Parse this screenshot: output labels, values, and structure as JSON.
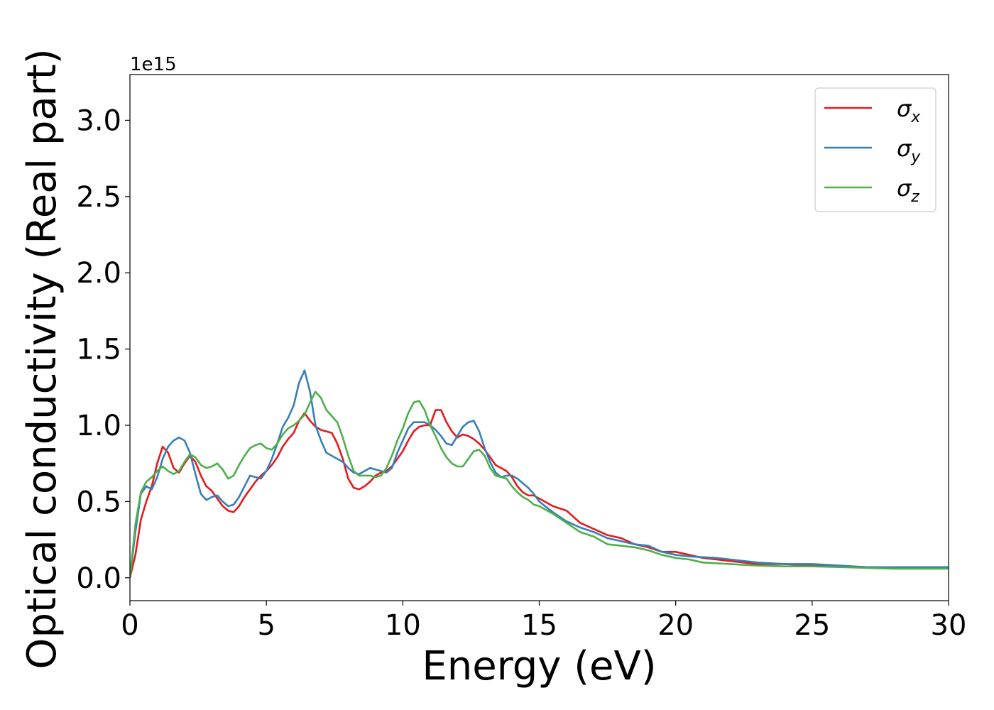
{
  "chart_data": {
    "type": "line",
    "title": "",
    "xlabel": "Energy (eV)",
    "ylabel": "Optical conductivity (Real part)",
    "y_offset_text": "1e15",
    "y_scale_factor": 1000000000000000.0,
    "xlim": [
      0,
      30
    ],
    "ylim": [
      -0.15,
      3.3
    ],
    "xticks": [
      0,
      5,
      10,
      15,
      20,
      25,
      30
    ],
    "xtick_labels": [
      "0",
      "5",
      "10",
      "15",
      "20",
      "25",
      "30"
    ],
    "yticks": [
      0.0,
      0.5,
      1.0,
      1.5,
      2.0,
      2.5,
      3.0
    ],
    "ytick_labels": [
      "0.0",
      "0.5",
      "1.0",
      "1.5",
      "2.0",
      "2.5",
      "3.0"
    ],
    "grid": false,
    "legend_position": "top-right",
    "series": [
      {
        "name": "σx",
        "symbol": "σ",
        "subscript": "x",
        "color": "#e41a1c",
        "points": [
          [
            0,
            0
          ],
          [
            0.2,
            0.15
          ],
          [
            0.4,
            0.38
          ],
          [
            0.6,
            0.5
          ],
          [
            0.8,
            0.6
          ],
          [
            1.0,
            0.75
          ],
          [
            1.2,
            0.86
          ],
          [
            1.4,
            0.82
          ],
          [
            1.6,
            0.72
          ],
          [
            1.8,
            0.69
          ],
          [
            2.0,
            0.75
          ],
          [
            2.2,
            0.8
          ],
          [
            2.4,
            0.76
          ],
          [
            2.6,
            0.67
          ],
          [
            2.8,
            0.6
          ],
          [
            3.0,
            0.57
          ],
          [
            3.2,
            0.52
          ],
          [
            3.4,
            0.47
          ],
          [
            3.6,
            0.44
          ],
          [
            3.8,
            0.43
          ],
          [
            4.0,
            0.47
          ],
          [
            4.2,
            0.53
          ],
          [
            4.4,
            0.58
          ],
          [
            4.6,
            0.63
          ],
          [
            4.8,
            0.67
          ],
          [
            5.0,
            0.7
          ],
          [
            5.2,
            0.74
          ],
          [
            5.4,
            0.79
          ],
          [
            5.6,
            0.86
          ],
          [
            5.8,
            0.91
          ],
          [
            6.0,
            0.95
          ],
          [
            6.2,
            1.03
          ],
          [
            6.4,
            1.08
          ],
          [
            6.6,
            1.03
          ],
          [
            6.8,
            0.99
          ],
          [
            7.0,
            0.97
          ],
          [
            7.2,
            0.96
          ],
          [
            7.4,
            0.95
          ],
          [
            7.6,
            0.88
          ],
          [
            7.8,
            0.78
          ],
          [
            8.0,
            0.65
          ],
          [
            8.2,
            0.59
          ],
          [
            8.4,
            0.58
          ],
          [
            8.6,
            0.6
          ],
          [
            8.8,
            0.63
          ],
          [
            9.0,
            0.67
          ],
          [
            9.2,
            0.69
          ],
          [
            9.4,
            0.7
          ],
          [
            9.6,
            0.73
          ],
          [
            9.8,
            0.78
          ],
          [
            10.0,
            0.83
          ],
          [
            10.2,
            0.9
          ],
          [
            10.4,
            0.96
          ],
          [
            10.6,
            0.99
          ],
          [
            10.8,
            1.0
          ],
          [
            11.0,
            1.0
          ],
          [
            11.2,
            1.1
          ],
          [
            11.4,
            1.1
          ],
          [
            11.6,
            1.02
          ],
          [
            11.8,
            0.96
          ],
          [
            12.0,
            0.92
          ],
          [
            12.2,
            0.94
          ],
          [
            12.4,
            0.93
          ],
          [
            12.6,
            0.91
          ],
          [
            12.8,
            0.88
          ],
          [
            13.0,
            0.84
          ],
          [
            13.2,
            0.79
          ],
          [
            13.4,
            0.74
          ],
          [
            13.6,
            0.72
          ],
          [
            13.8,
            0.7
          ],
          [
            14.0,
            0.66
          ],
          [
            14.2,
            0.6
          ],
          [
            14.4,
            0.56
          ],
          [
            14.6,
            0.54
          ],
          [
            14.8,
            0.54
          ],
          [
            15.0,
            0.52
          ],
          [
            15.5,
            0.47
          ],
          [
            16.0,
            0.44
          ],
          [
            16.5,
            0.36
          ],
          [
            17.0,
            0.32
          ],
          [
            17.5,
            0.28
          ],
          [
            18.0,
            0.26
          ],
          [
            18.5,
            0.22
          ],
          [
            19.0,
            0.2
          ],
          [
            19.5,
            0.17
          ],
          [
            20.0,
            0.17
          ],
          [
            20.5,
            0.15
          ],
          [
            21.0,
            0.13
          ],
          [
            21.5,
            0.12
          ],
          [
            22.0,
            0.11
          ],
          [
            22.5,
            0.1
          ],
          [
            23.0,
            0.09
          ],
          [
            24.0,
            0.09
          ],
          [
            25.0,
            0.08
          ],
          [
            26.0,
            0.075
          ],
          [
            27.0,
            0.07
          ],
          [
            28.0,
            0.065
          ],
          [
            29.0,
            0.065
          ],
          [
            30.0,
            0.065
          ]
        ]
      },
      {
        "name": "σy",
        "symbol": "σ",
        "subscript": "y",
        "color": "#377eb8",
        "points": [
          [
            0,
            0
          ],
          [
            0.2,
            0.3
          ],
          [
            0.4,
            0.55
          ],
          [
            0.6,
            0.6
          ],
          [
            0.8,
            0.58
          ],
          [
            1.0,
            0.66
          ],
          [
            1.2,
            0.78
          ],
          [
            1.4,
            0.86
          ],
          [
            1.6,
            0.9
          ],
          [
            1.8,
            0.92
          ],
          [
            2.0,
            0.9
          ],
          [
            2.2,
            0.82
          ],
          [
            2.4,
            0.68
          ],
          [
            2.6,
            0.55
          ],
          [
            2.8,
            0.51
          ],
          [
            3.0,
            0.53
          ],
          [
            3.2,
            0.54
          ],
          [
            3.4,
            0.5
          ],
          [
            3.6,
            0.47
          ],
          [
            3.8,
            0.48
          ],
          [
            4.0,
            0.53
          ],
          [
            4.2,
            0.6
          ],
          [
            4.4,
            0.67
          ],
          [
            4.6,
            0.66
          ],
          [
            4.8,
            0.65
          ],
          [
            5.0,
            0.7
          ],
          [
            5.2,
            0.78
          ],
          [
            5.4,
            0.88
          ],
          [
            5.6,
            0.99
          ],
          [
            5.8,
            1.05
          ],
          [
            6.0,
            1.13
          ],
          [
            6.2,
            1.28
          ],
          [
            6.4,
            1.36
          ],
          [
            6.6,
            1.22
          ],
          [
            6.8,
            1.0
          ],
          [
            7.0,
            0.9
          ],
          [
            7.2,
            0.82
          ],
          [
            7.4,
            0.8
          ],
          [
            7.6,
            0.78
          ],
          [
            7.8,
            0.76
          ],
          [
            8.0,
            0.72
          ],
          [
            8.2,
            0.69
          ],
          [
            8.4,
            0.68
          ],
          [
            8.6,
            0.7
          ],
          [
            8.8,
            0.72
          ],
          [
            9.0,
            0.71
          ],
          [
            9.2,
            0.7
          ],
          [
            9.4,
            0.69
          ],
          [
            9.6,
            0.72
          ],
          [
            9.8,
            0.82
          ],
          [
            10.0,
            0.9
          ],
          [
            10.2,
            0.98
          ],
          [
            10.4,
            1.02
          ],
          [
            10.6,
            1.02
          ],
          [
            10.8,
            1.02
          ],
          [
            11.0,
            1.0
          ],
          [
            11.2,
            0.97
          ],
          [
            11.4,
            0.93
          ],
          [
            11.6,
            0.88
          ],
          [
            11.8,
            0.87
          ],
          [
            12.0,
            0.93
          ],
          [
            12.2,
            0.99
          ],
          [
            12.4,
            1.02
          ],
          [
            12.6,
            1.03
          ],
          [
            12.8,
            0.96
          ],
          [
            13.0,
            0.85
          ],
          [
            13.2,
            0.76
          ],
          [
            13.4,
            0.69
          ],
          [
            13.6,
            0.66
          ],
          [
            13.8,
            0.67
          ],
          [
            14.0,
            0.67
          ],
          [
            14.2,
            0.65
          ],
          [
            14.4,
            0.62
          ],
          [
            14.6,
            0.59
          ],
          [
            14.8,
            0.55
          ],
          [
            15.0,
            0.5
          ],
          [
            15.5,
            0.43
          ],
          [
            16.0,
            0.37
          ],
          [
            16.5,
            0.33
          ],
          [
            17.0,
            0.3
          ],
          [
            17.5,
            0.26
          ],
          [
            18.0,
            0.24
          ],
          [
            18.5,
            0.22
          ],
          [
            19.0,
            0.21
          ],
          [
            19.5,
            0.17
          ],
          [
            20.0,
            0.15
          ],
          [
            20.5,
            0.14
          ],
          [
            21.0,
            0.135
          ],
          [
            21.5,
            0.13
          ],
          [
            22.0,
            0.12
          ],
          [
            22.5,
            0.11
          ],
          [
            23.0,
            0.1
          ],
          [
            24.0,
            0.09
          ],
          [
            25.0,
            0.09
          ],
          [
            26.0,
            0.08
          ],
          [
            27.0,
            0.07
          ],
          [
            28.0,
            0.07
          ],
          [
            29.0,
            0.07
          ],
          [
            30.0,
            0.07
          ]
        ]
      },
      {
        "name": "σz",
        "symbol": "σ",
        "subscript": "z",
        "color": "#4daf4a",
        "points": [
          [
            0,
            0
          ],
          [
            0.2,
            0.35
          ],
          [
            0.4,
            0.56
          ],
          [
            0.6,
            0.63
          ],
          [
            0.8,
            0.66
          ],
          [
            1.0,
            0.7
          ],
          [
            1.2,
            0.73
          ],
          [
            1.4,
            0.7
          ],
          [
            1.6,
            0.68
          ],
          [
            1.8,
            0.7
          ],
          [
            2.0,
            0.76
          ],
          [
            2.2,
            0.81
          ],
          [
            2.4,
            0.79
          ],
          [
            2.6,
            0.74
          ],
          [
            2.8,
            0.72
          ],
          [
            3.0,
            0.73
          ],
          [
            3.2,
            0.75
          ],
          [
            3.4,
            0.71
          ],
          [
            3.6,
            0.65
          ],
          [
            3.8,
            0.67
          ],
          [
            4.0,
            0.74
          ],
          [
            4.2,
            0.8
          ],
          [
            4.4,
            0.85
          ],
          [
            4.6,
            0.87
          ],
          [
            4.8,
            0.88
          ],
          [
            5.0,
            0.85
          ],
          [
            5.2,
            0.84
          ],
          [
            5.4,
            0.88
          ],
          [
            5.6,
            0.94
          ],
          [
            5.8,
            0.98
          ],
          [
            6.0,
            1.0
          ],
          [
            6.2,
            1.03
          ],
          [
            6.4,
            1.07
          ],
          [
            6.6,
            1.15
          ],
          [
            6.8,
            1.22
          ],
          [
            7.0,
            1.18
          ],
          [
            7.2,
            1.1
          ],
          [
            7.4,
            1.06
          ],
          [
            7.6,
            1.02
          ],
          [
            7.8,
            0.92
          ],
          [
            8.0,
            0.8
          ],
          [
            8.2,
            0.7
          ],
          [
            8.4,
            0.67
          ],
          [
            8.6,
            0.67
          ],
          [
            8.8,
            0.67
          ],
          [
            9.0,
            0.66
          ],
          [
            9.2,
            0.67
          ],
          [
            9.4,
            0.72
          ],
          [
            9.6,
            0.8
          ],
          [
            9.8,
            0.9
          ],
          [
            10.0,
            0.98
          ],
          [
            10.2,
            1.08
          ],
          [
            10.4,
            1.15
          ],
          [
            10.6,
            1.16
          ],
          [
            10.8,
            1.1
          ],
          [
            11.0,
            1.0
          ],
          [
            11.2,
            0.93
          ],
          [
            11.4,
            0.85
          ],
          [
            11.6,
            0.79
          ],
          [
            11.8,
            0.75
          ],
          [
            12.0,
            0.73
          ],
          [
            12.2,
            0.73
          ],
          [
            12.4,
            0.78
          ],
          [
            12.6,
            0.83
          ],
          [
            12.8,
            0.84
          ],
          [
            13.0,
            0.8
          ],
          [
            13.2,
            0.72
          ],
          [
            13.4,
            0.67
          ],
          [
            13.6,
            0.66
          ],
          [
            13.8,
            0.65
          ],
          [
            14.0,
            0.6
          ],
          [
            14.2,
            0.56
          ],
          [
            14.4,
            0.53
          ],
          [
            14.6,
            0.51
          ],
          [
            14.8,
            0.48
          ],
          [
            15.0,
            0.47
          ],
          [
            15.5,
            0.42
          ],
          [
            16.0,
            0.36
          ],
          [
            16.5,
            0.3
          ],
          [
            17.0,
            0.27
          ],
          [
            17.5,
            0.22
          ],
          [
            18.0,
            0.21
          ],
          [
            18.5,
            0.2
          ],
          [
            19.0,
            0.18
          ],
          [
            19.5,
            0.15
          ],
          [
            20.0,
            0.13
          ],
          [
            20.5,
            0.12
          ],
          [
            21.0,
            0.1
          ],
          [
            21.5,
            0.095
          ],
          [
            22.0,
            0.09
          ],
          [
            22.5,
            0.085
          ],
          [
            23.0,
            0.08
          ],
          [
            24.0,
            0.075
          ],
          [
            25.0,
            0.075
          ],
          [
            26.0,
            0.07
          ],
          [
            27.0,
            0.065
          ],
          [
            28.0,
            0.06
          ],
          [
            29.0,
            0.06
          ],
          [
            30.0,
            0.06
          ]
        ]
      }
    ]
  }
}
